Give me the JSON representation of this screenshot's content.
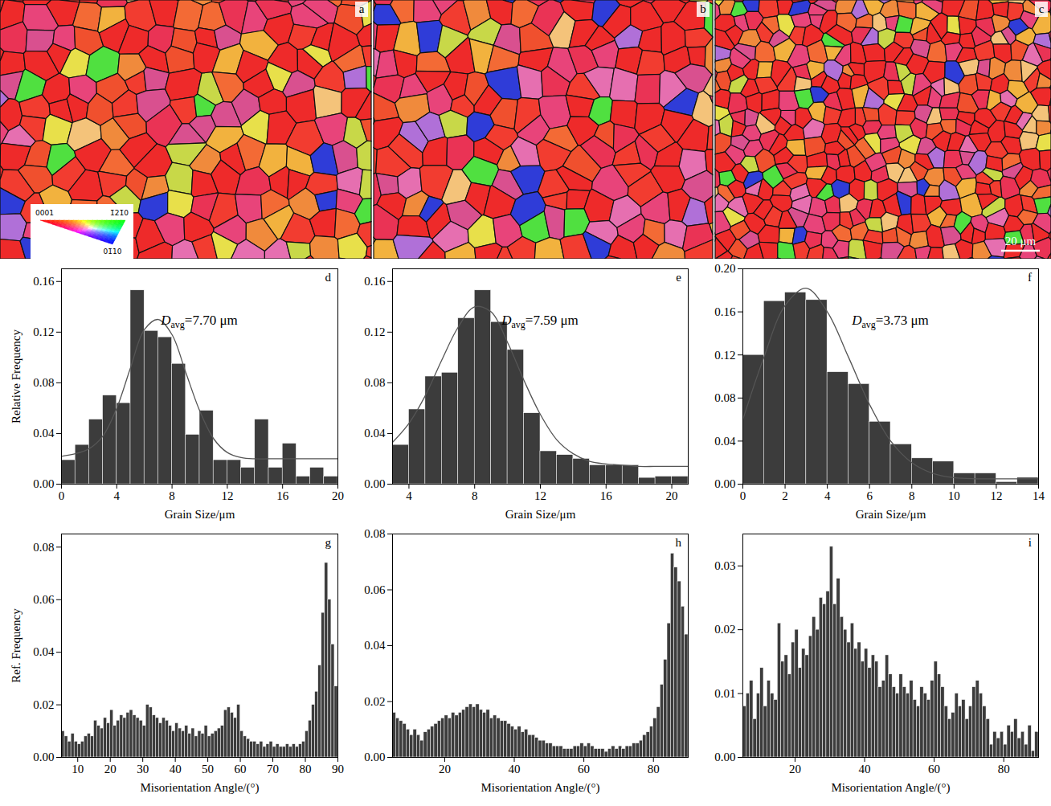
{
  "maps": [
    {
      "panel": "a"
    },
    {
      "panel": "b"
    },
    {
      "panel": "c",
      "scale_bar": "20 μm"
    }
  ],
  "ipf_key": {
    "corners": [
      "0001",
      "1̄21̄0",
      "01̄10"
    ]
  },
  "chart_data": [
    {
      "type": "histogram",
      "panel": "d",
      "y_label": "Relative Frequency",
      "x_label": "Grain Size/μm",
      "color": "#3c3c3c",
      "bins": [
        0,
        1,
        2,
        3,
        4,
        5,
        6,
        7,
        8,
        9,
        10,
        11,
        12,
        13,
        14,
        15,
        16,
        17,
        18,
        19,
        20
      ],
      "values": [
        0.019,
        0.031,
        0.051,
        0.07,
        0.064,
        0.153,
        0.121,
        0.116,
        0.095,
        0.039,
        0.058,
        0.019,
        0.019,
        0.013,
        0.051,
        0.013,
        0.032,
        0.006,
        0.013,
        0.006
      ],
      "fit_curve": {
        "color": "#555555",
        "x": [
          0,
          1,
          2,
          3,
          4,
          5,
          6,
          7,
          8,
          9,
          10,
          11,
          12,
          13,
          14,
          15,
          16,
          17,
          18,
          19,
          20
        ],
        "values": [
          0.022,
          0.024,
          0.028,
          0.038,
          0.06,
          0.092,
          0.122,
          0.13,
          0.118,
          0.088,
          0.058,
          0.036,
          0.025,
          0.021,
          0.02,
          0.02,
          0.02,
          0.02,
          0.02,
          0.02,
          0.02
        ]
      },
      "annotation": {
        "symbol": "D",
        "subscript": "avg",
        "text": "=7.70 μm"
      },
      "xlim": [
        0,
        20
      ],
      "xticks": [
        0,
        4,
        8,
        12,
        16,
        20
      ],
      "ylim": [
        0,
        0.17
      ],
      "yticks": [
        {
          "value": 0,
          "label": "0.00"
        },
        0.04,
        0.08,
        0.12,
        0.16
      ]
    },
    {
      "type": "histogram",
      "panel": "e",
      "x_label": "Grain Size/μm",
      "color": "#3c3c3c",
      "bins": [
        3,
        4,
        5,
        6,
        7,
        8,
        9,
        10,
        11,
        12,
        13,
        14,
        15,
        16,
        17,
        18,
        19,
        20,
        21
      ],
      "values": [
        0.031,
        0.059,
        0.085,
        0.088,
        0.131,
        0.153,
        0.128,
        0.106,
        0.056,
        0.026,
        0.023,
        0.02,
        0.015,
        0.015,
        0.015,
        0.005,
        0.006,
        0.006
      ],
      "fit_curve": {
        "color": "#555555",
        "x": [
          3,
          4,
          5,
          6,
          7,
          8,
          9,
          10,
          11,
          12,
          13,
          14,
          15,
          16,
          17,
          18,
          19,
          20,
          21
        ],
        "values": [
          0.033,
          0.048,
          0.07,
          0.098,
          0.124,
          0.14,
          0.136,
          0.112,
          0.082,
          0.055,
          0.035,
          0.024,
          0.018,
          0.016,
          0.015,
          0.014,
          0.014,
          0.014,
          0.014
        ]
      },
      "annotation": {
        "symbol": "D",
        "subscript": "avg",
        "text": "=7.59 μm"
      },
      "xlim": [
        3,
        21
      ],
      "xticks": [
        4,
        8,
        12,
        16,
        20
      ],
      "ylim": [
        0,
        0.17
      ],
      "yticks": [
        {
          "value": 0,
          "label": "0.00"
        },
        0.04,
        0.08,
        0.12,
        0.16
      ]
    },
    {
      "type": "histogram",
      "panel": "f",
      "x_label": "Grain Size/μm",
      "color": "#3c3c3c",
      "bins": [
        0,
        1,
        2,
        3,
        4,
        5,
        6,
        7,
        8,
        9,
        10,
        11,
        12,
        13,
        14
      ],
      "values": [
        0.12,
        0.17,
        0.178,
        0.171,
        0.104,
        0.093,
        0.058,
        0.037,
        0.024,
        0.021,
        0.01,
        0.01,
        0.002,
        0.006
      ],
      "fit_curve": {
        "color": "#555555",
        "x": [
          0,
          1,
          2,
          3,
          4,
          5,
          6,
          7,
          8,
          9,
          10,
          11,
          12,
          13,
          14
        ],
        "values": [
          0.06,
          0.118,
          0.166,
          0.182,
          0.16,
          0.118,
          0.074,
          0.04,
          0.02,
          0.01,
          0.006,
          0.005,
          0.005,
          0.005,
          0.005
        ]
      },
      "annotation": {
        "symbol": "D",
        "subscript": "avg",
        "text": "=3.73 μm"
      },
      "xlim": [
        0,
        14
      ],
      "xticks": [
        0,
        2,
        4,
        6,
        8,
        10,
        12,
        14
      ],
      "ylim": [
        0,
        0.2
      ],
      "yticks": [
        {
          "value": 0,
          "label": "0.00"
        },
        0.04,
        0.08,
        0.12,
        0.16,
        {
          "value": 0.2,
          "label": "0.20"
        }
      ]
    },
    {
      "type": "histogram",
      "panel": "g",
      "y_label": "Ref. Frequency",
      "x_label": "Misorientation Angle/(°)",
      "color": "#3c3c3c",
      "bins": [
        5,
        6,
        7,
        8,
        9,
        10,
        11,
        12,
        13,
        14,
        15,
        16,
        17,
        18,
        19,
        20,
        21,
        22,
        23,
        24,
        25,
        26,
        27,
        28,
        29,
        30,
        31,
        32,
        33,
        34,
        35,
        36,
        37,
        38,
        39,
        40,
        41,
        42,
        43,
        44,
        45,
        46,
        47,
        48,
        49,
        50,
        51,
        52,
        53,
        54,
        55,
        56,
        57,
        58,
        59,
        60,
        61,
        62,
        63,
        64,
        65,
        66,
        67,
        68,
        69,
        70,
        71,
        72,
        73,
        74,
        75,
        76,
        77,
        78,
        79,
        80,
        81,
        82,
        83,
        84,
        85,
        86,
        87,
        88,
        89,
        90
      ],
      "values": [
        0.01,
        0.008,
        0.006,
        0.009,
        0.006,
        0.005,
        0.006,
        0.008,
        0.009,
        0.008,
        0.014,
        0.012,
        0.011,
        0.015,
        0.013,
        0.018,
        0.012,
        0.014,
        0.016,
        0.015,
        0.017,
        0.018,
        0.016,
        0.015,
        0.014,
        0.012,
        0.02,
        0.019,
        0.016,
        0.015,
        0.013,
        0.015,
        0.014,
        0.012,
        0.01,
        0.013,
        0.011,
        0.01,
        0.012,
        0.009,
        0.011,
        0.008,
        0.01,
        0.009,
        0.012,
        0.008,
        0.009,
        0.01,
        0.011,
        0.012,
        0.018,
        0.019,
        0.017,
        0.015,
        0.02,
        0.01,
        0.008,
        0.007,
        0.006,
        0.006,
        0.005,
        0.006,
        0.004,
        0.005,
        0.006,
        0.004,
        0.005,
        0.004,
        0.004,
        0.005,
        0.004,
        0.005,
        0.004,
        0.005,
        0.006,
        0.01,
        0.014,
        0.02,
        0.025,
        0.035,
        0.055,
        0.074,
        0.06,
        0.043,
        0.027
      ],
      "xlim": [
        5,
        90
      ],
      "xticks": [
        10,
        20,
        30,
        40,
        50,
        60,
        70,
        80,
        90
      ],
      "ylim": [
        0,
        0.085
      ],
      "yticks": [
        {
          "value": 0,
          "label": "0.00"
        },
        0.02,
        0.04,
        0.06,
        0.08
      ]
    },
    {
      "type": "histogram",
      "panel": "h",
      "x_label": "Misorientation Angle/(°)",
      "color": "#3c3c3c",
      "bins": [
        5,
        6,
        7,
        8,
        9,
        10,
        11,
        12,
        13,
        14,
        15,
        16,
        17,
        18,
        19,
        20,
        21,
        22,
        23,
        24,
        25,
        26,
        27,
        28,
        29,
        30,
        31,
        32,
        33,
        34,
        35,
        36,
        37,
        38,
        39,
        40,
        41,
        42,
        43,
        44,
        45,
        46,
        47,
        48,
        49,
        50,
        51,
        52,
        53,
        54,
        55,
        56,
        57,
        58,
        59,
        60,
        61,
        62,
        63,
        64,
        65,
        66,
        67,
        68,
        69,
        70,
        71,
        72,
        73,
        74,
        75,
        76,
        77,
        78,
        79,
        80,
        81,
        82,
        83,
        84,
        85,
        86,
        87,
        88,
        89,
        90
      ],
      "values": [
        0.016,
        0.014,
        0.013,
        0.012,
        0.01,
        0.008,
        0.01,
        0.008,
        0.006,
        0.009,
        0.01,
        0.011,
        0.012,
        0.013,
        0.014,
        0.015,
        0.014,
        0.016,
        0.015,
        0.016,
        0.017,
        0.018,
        0.019,
        0.018,
        0.019,
        0.017,
        0.016,
        0.017,
        0.014,
        0.015,
        0.014,
        0.013,
        0.013,
        0.012,
        0.011,
        0.01,
        0.011,
        0.009,
        0.01,
        0.008,
        0.008,
        0.007,
        0.006,
        0.006,
        0.005,
        0.005,
        0.004,
        0.004,
        0.004,
        0.003,
        0.003,
        0.003,
        0.004,
        0.004,
        0.005,
        0.004,
        0.005,
        0.004,
        0.003,
        0.003,
        0.003,
        0.002,
        0.003,
        0.004,
        0.003,
        0.004,
        0.003,
        0.004,
        0.004,
        0.005,
        0.005,
        0.006,
        0.008,
        0.009,
        0.011,
        0.014,
        0.018,
        0.026,
        0.035,
        0.048,
        0.073,
        0.068,
        0.063,
        0.054,
        0.044
      ],
      "xlim": [
        5,
        90
      ],
      "xticks": [
        20,
        40,
        60,
        80
      ],
      "ylim": [
        0,
        0.08
      ],
      "yticks": [
        {
          "value": 0,
          "label": "0.00"
        },
        0.02,
        0.04,
        0.06,
        0.08
      ]
    },
    {
      "type": "histogram",
      "panel": "i",
      "x_label": "Misorientation Angle/(°)",
      "color": "#3c3c3c",
      "bins": [
        5,
        6,
        7,
        8,
        9,
        10,
        11,
        12,
        13,
        14,
        15,
        16,
        17,
        18,
        19,
        20,
        21,
        22,
        23,
        24,
        25,
        26,
        27,
        28,
        29,
        30,
        31,
        32,
        33,
        34,
        35,
        36,
        37,
        38,
        39,
        40,
        41,
        42,
        43,
        44,
        45,
        46,
        47,
        48,
        49,
        50,
        51,
        52,
        53,
        54,
        55,
        56,
        57,
        58,
        59,
        60,
        61,
        62,
        63,
        64,
        65,
        66,
        67,
        68,
        69,
        70,
        71,
        72,
        73,
        74,
        75,
        76,
        77,
        78,
        79,
        80,
        81,
        82,
        83,
        84,
        85,
        86,
        87,
        88,
        89,
        90
      ],
      "values": [
        0.008,
        0.01,
        0.012,
        0.006,
        0.01,
        0.014,
        0.008,
        0.012,
        0.01,
        0.009,
        0.021,
        0.015,
        0.016,
        0.013,
        0.018,
        0.02,
        0.014,
        0.017,
        0.016,
        0.019,
        0.022,
        0.02,
        0.025,
        0.024,
        0.026,
        0.033,
        0.024,
        0.028,
        0.022,
        0.02,
        0.018,
        0.021,
        0.017,
        0.018,
        0.015,
        0.017,
        0.014,
        0.016,
        0.015,
        0.011,
        0.012,
        0.016,
        0.013,
        0.011,
        0.01,
        0.013,
        0.011,
        0.01,
        0.012,
        0.009,
        0.008,
        0.011,
        0.01,
        0.009,
        0.012,
        0.015,
        0.013,
        0.011,
        0.008,
        0.006,
        0.007,
        0.01,
        0.008,
        0.009,
        0.006,
        0.008,
        0.011,
        0.012,
        0.01,
        0.008,
        0.006,
        0.002,
        0.004,
        0.003,
        0.004,
        0.002,
        0.005,
        0.004,
        0.006,
        0.003,
        0.004,
        0.002,
        0.005,
        0.001,
        0.004
      ],
      "xlim": [
        5,
        90
      ],
      "xticks": [
        20,
        40,
        60,
        80
      ],
      "ylim": [
        0,
        0.035
      ],
      "yticks": [
        {
          "value": 0,
          "label": "0.00"
        },
        0.01,
        0.02,
        0.03
      ]
    }
  ]
}
